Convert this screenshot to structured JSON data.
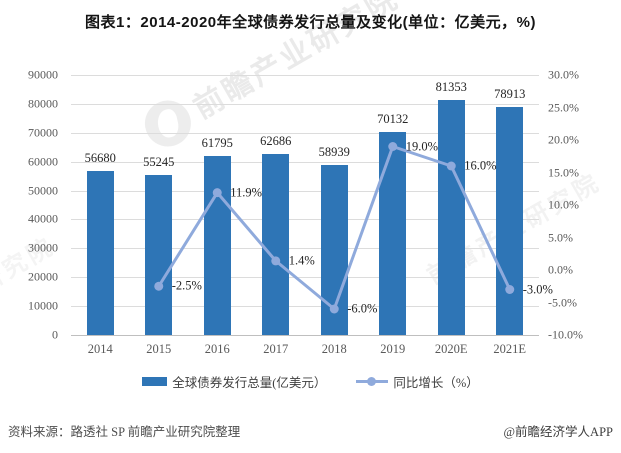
{
  "chart_data": {
    "type": "bar+line",
    "title": "图表1：2014-2020年全球债券发行总量及变化(单位：亿美元，%)",
    "categories": [
      "2014",
      "2015",
      "2016",
      "2017",
      "2018",
      "2019",
      "2020E",
      "2021E"
    ],
    "series": [
      {
        "name": "全球债券发行总量(亿美元）",
        "type": "bar",
        "axis": "left",
        "values": [
          56680,
          55245,
          61795,
          62686,
          58939,
          70132,
          81353,
          78913
        ],
        "labels": [
          "56680",
          "55245",
          "61795",
          "62686",
          "58939",
          "70132",
          "81353",
          "78913"
        ]
      },
      {
        "name": "同比增长（%）",
        "type": "line",
        "axis": "right",
        "values": [
          null,
          -2.5,
          11.9,
          1.4,
          -6.0,
          19.0,
          16.0,
          -3.0
        ],
        "labels": [
          null,
          "-2.5%",
          "11.9%",
          "1.4%",
          "-6.0%",
          "19.0%",
          "16.0%",
          "-3.0%"
        ]
      }
    ],
    "left_axis": {
      "min": 0,
      "max": 90000,
      "step": 10000,
      "tick_labels": [
        "90000",
        "80000",
        "70000",
        "60000",
        "50000",
        "40000",
        "30000",
        "20000",
        "10000",
        "0"
      ]
    },
    "right_axis": {
      "min": -10,
      "max": 30,
      "step": 5,
      "tick_labels": [
        "30.0%",
        "25.0%",
        "20.0%",
        "15.0%",
        "10.0%",
        "5.0%",
        "0.0%",
        "-5.0%",
        "-10.0%"
      ]
    },
    "grid": true,
    "legend_position": "bottom"
  },
  "legend": {
    "bar_label": "全球债券发行总量(亿美元）",
    "line_label": "同比增长（%）"
  },
  "footer": {
    "source": "资料来源：路透社 SP 前瞻产业研究院整理",
    "credit": "@前瞻经济学人APP"
  },
  "watermark": {
    "text": "前瞻产业研究院"
  },
  "colors": {
    "bar": "#2E75B6",
    "line": "#8FAADC",
    "grid": "#DCDCDC",
    "axis_text": "#595959",
    "label_text": "#262626",
    "title_text": "#141414",
    "footer_text": "#4D4D4D"
  }
}
